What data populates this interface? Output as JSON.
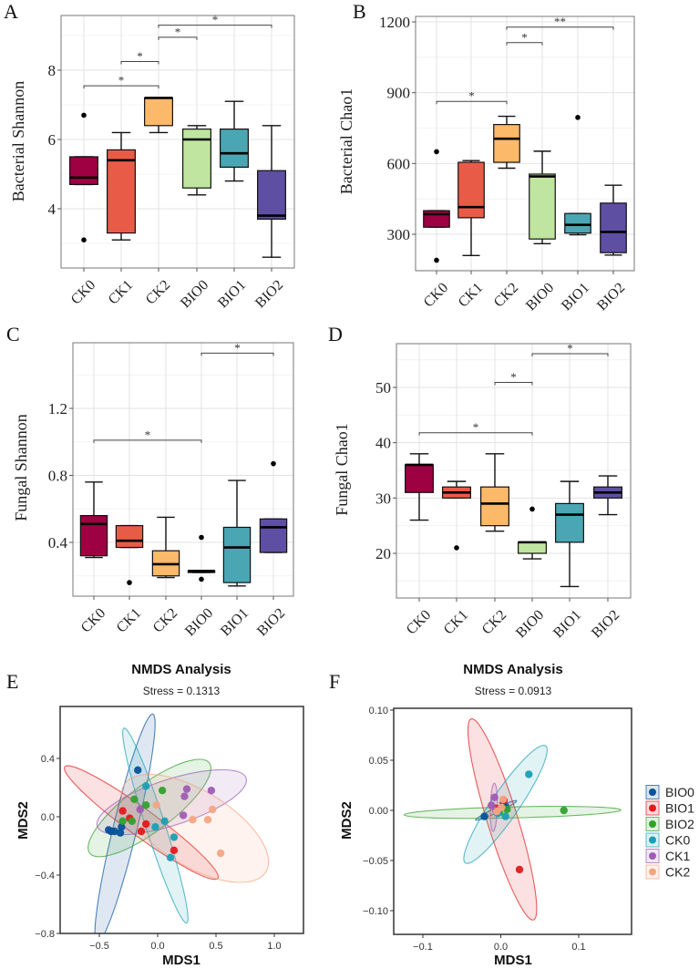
{
  "figure": {
    "panel_labels": [
      "A",
      "B",
      "C",
      "D",
      "E",
      "F"
    ]
  },
  "chart_data": [
    {
      "type": "box",
      "panel": "A",
      "title": "",
      "xlabel": "",
      "ylabel": "Bacterial Shannon",
      "categories": [
        "CK0",
        "CK1",
        "CK2",
        "BIO0",
        "BIO1",
        "BIO2"
      ],
      "colors": [
        "#9E0142",
        "#E85C47",
        "#FDB96A",
        "#BFE5A0",
        "#4AA6B3",
        "#5E4FA2"
      ],
      "yticks": [
        4,
        6,
        8
      ],
      "ylim": [
        2.3,
        9.6
      ],
      "boxes": [
        {
          "min": 4.7,
          "q1": 4.7,
          "median": 4.9,
          "q3": 5.5,
          "max": 5.5,
          "outliers": [
            6.7,
            3.1
          ]
        },
        {
          "min": 3.1,
          "q1": 3.3,
          "median": 5.4,
          "q3": 5.7,
          "max": 6.2,
          "outliers": []
        },
        {
          "min": 6.2,
          "q1": 6.4,
          "median": 7.2,
          "q3": 7.2,
          "max": 7.2,
          "outliers": []
        },
        {
          "min": 4.4,
          "q1": 4.6,
          "median": 6.0,
          "q3": 6.3,
          "max": 6.4,
          "outliers": []
        },
        {
          "min": 4.8,
          "q1": 5.2,
          "median": 5.6,
          "q3": 6.3,
          "max": 7.1,
          "outliers": []
        },
        {
          "min": 2.6,
          "q1": 3.7,
          "median": 3.8,
          "q3": 5.1,
          "max": 6.4,
          "outliers": []
        }
      ],
      "significance": [
        {
          "from": 0,
          "to": 2,
          "y": 7.55,
          "label": "*"
        },
        {
          "from": 1,
          "to": 2,
          "y": 8.25,
          "label": "*"
        },
        {
          "from": 2,
          "to": 3,
          "y": 8.95,
          "label": "*"
        },
        {
          "from": 2,
          "to": 5,
          "y": 9.3,
          "label": "*"
        }
      ]
    },
    {
      "type": "box",
      "panel": "B",
      "title": "",
      "xlabel": "",
      "ylabel": "Bacterial Chao1",
      "categories": [
        "CK0",
        "CK1",
        "CK2",
        "BIO0",
        "BIO1",
        "BIO2"
      ],
      "colors": [
        "#9E0142",
        "#E85C47",
        "#FDB96A",
        "#BFE5A0",
        "#4AA6B3",
        "#5E4FA2"
      ],
      "yticks": [
        300,
        600,
        900,
        1200
      ],
      "ylim": [
        140,
        1220
      ],
      "boxes": [
        {
          "min": 330,
          "q1": 330,
          "median": 385,
          "q3": 400,
          "max": 400,
          "outliers": [
            650,
            190
          ]
        },
        {
          "min": 210,
          "q1": 370,
          "median": 415,
          "q3": 605,
          "max": 612,
          "outliers": []
        },
        {
          "min": 580,
          "q1": 605,
          "median": 705,
          "q3": 765,
          "max": 800,
          "outliers": []
        },
        {
          "min": 260,
          "q1": 280,
          "median": 545,
          "q3": 555,
          "max": 652,
          "outliers": []
        },
        {
          "min": 298,
          "q1": 305,
          "median": 340,
          "q3": 388,
          "max": 388,
          "outliers": [
            795
          ]
        },
        {
          "min": 212,
          "q1": 222,
          "median": 310,
          "q3": 432,
          "max": 508,
          "outliers": []
        }
      ],
      "significance": [
        {
          "from": 0,
          "to": 2,
          "y": 863,
          "label": "*"
        },
        {
          "from": 2,
          "to": 3,
          "y": 1112,
          "label": "*"
        },
        {
          "from": 2,
          "to": 5,
          "y": 1178,
          "label": "**"
        }
      ]
    },
    {
      "type": "box",
      "panel": "C",
      "title": "",
      "xlabel": "",
      "ylabel": "Fungal Shannon",
      "categories": [
        "CK0",
        "CK1",
        "CK2",
        "BIO0",
        "BIO1",
        "BIO2"
      ],
      "colors": [
        "#9E0142",
        "#E85C47",
        "#FDB96A",
        "#BFE5A0",
        "#4AA6B3",
        "#5E4FA2"
      ],
      "yticks": [
        0.4,
        0.8,
        1.2
      ],
      "ylim": [
        0.07,
        1.58
      ],
      "boxes": [
        {
          "min": 0.31,
          "q1": 0.32,
          "median": 0.51,
          "q3": 0.56,
          "max": 0.76,
          "outliers": []
        },
        {
          "min": 0.37,
          "q1": 0.37,
          "median": 0.41,
          "q3": 0.5,
          "max": 0.5,
          "outliers": [
            0.16
          ]
        },
        {
          "min": 0.19,
          "q1": 0.2,
          "median": 0.27,
          "q3": 0.35,
          "max": 0.55,
          "outliers": []
        },
        {
          "min": 0.22,
          "q1": 0.22,
          "median": 0.23,
          "q3": 0.23,
          "max": 0.23,
          "outliers": [
            0.43,
            0.18
          ]
        },
        {
          "min": 0.14,
          "q1": 0.16,
          "median": 0.37,
          "q3": 0.49,
          "max": 0.77,
          "outliers": []
        },
        {
          "min": 0.34,
          "q1": 0.34,
          "median": 0.49,
          "q3": 0.54,
          "max": 0.54,
          "outliers": [
            0.87
          ]
        }
      ],
      "significance": [
        {
          "from": 0,
          "to": 3,
          "y": 1.01,
          "label": "*"
        },
        {
          "from": 3,
          "to": 5,
          "y": 1.53,
          "label": "*"
        }
      ]
    },
    {
      "type": "box",
      "panel": "D",
      "title": "",
      "xlabel": "",
      "ylabel": "Fungal Chao1",
      "categories": [
        "CK0",
        "CK1",
        "CK2",
        "BIO0",
        "BIO1",
        "BIO2"
      ],
      "colors": [
        "#9E0142",
        "#E85C47",
        "#FDB96A",
        "#BFE5A0",
        "#4AA6B3",
        "#5E4FA2"
      ],
      "yticks": [
        20,
        30,
        40,
        50
      ],
      "ylim": [
        12,
        58
      ],
      "boxes": [
        {
          "min": 26,
          "q1": 31,
          "median": 36,
          "q3": 36,
          "max": 38,
          "outliers": []
        },
        {
          "min": 30,
          "q1": 30,
          "median": 31,
          "q3": 32,
          "max": 33,
          "outliers": [
            21
          ]
        },
        {
          "min": 24,
          "q1": 25,
          "median": 29,
          "q3": 32,
          "max": 38,
          "outliers": []
        },
        {
          "min": 19,
          "q1": 20,
          "median": 22,
          "q3": 22,
          "max": 22,
          "outliers": [
            28
          ]
        },
        {
          "min": 14,
          "q1": 22,
          "median": 27,
          "q3": 29,
          "max": 33,
          "outliers": []
        },
        {
          "min": 27,
          "q1": 30,
          "median": 31,
          "q3": 32,
          "max": 34,
          "outliers": []
        }
      ],
      "significance": [
        {
          "from": 0,
          "to": 3,
          "y": 41.8,
          "label": "*"
        },
        {
          "from": 2,
          "to": 3,
          "y": 50.9,
          "label": "*"
        },
        {
          "from": 3,
          "to": 5,
          "y": 56.1,
          "label": "*"
        }
      ]
    },
    {
      "type": "scatter",
      "panel": "E",
      "title": "NMDS Analysis",
      "subtitle": "Stress = 0.1313",
      "xlabel": "MDS1",
      "ylabel": "MDS2",
      "xticks": [
        -0.5,
        0.0,
        0.5,
        1.0
      ],
      "xtick_labels": [
        "−0.5",
        "0.0",
        "0.5",
        "1.0"
      ],
      "yticks": [
        -0.8,
        -0.4,
        0.0,
        0.4
      ],
      "ytick_labels": [
        "−0.8",
        "−0.4",
        "0.0",
        "0.4"
      ],
      "xlim": [
        -0.84,
        1.24
      ],
      "ylim": [
        -0.8,
        0.76
      ],
      "series": [
        {
          "name": "BIO0",
          "color": "#08519C",
          "points": [
            [
              -0.17,
              0.32
            ],
            [
              -0.42,
              -0.09
            ],
            [
              -0.4,
              -0.1
            ],
            [
              -0.37,
              -0.1
            ],
            [
              -0.32,
              -0.11
            ],
            [
              -0.31,
              -0.07
            ]
          ],
          "ellipse": {
            "cx": -0.28,
            "cy": -0.08,
            "rx": 0.82,
            "ry": 0.1,
            "angle_deg": 73
          }
        },
        {
          "name": "BIO1",
          "color": "#E31A1C",
          "points": [
            [
              -0.3,
              0.04
            ],
            [
              -0.24,
              -0.01
            ],
            [
              -0.1,
              -0.05
            ],
            [
              -0.14,
              -0.1
            ],
            [
              0.14,
              -0.23
            ]
          ],
          "ellipse": {
            "cx": -0.14,
            "cy": -0.04,
            "rx": 0.76,
            "ry": 0.1,
            "angle_deg": -30
          }
        },
        {
          "name": "BIO2",
          "color": "#33A02C",
          "points": [
            [
              -0.2,
              0.12
            ],
            [
              -0.1,
              0.08
            ],
            [
              0.04,
              0.18
            ],
            [
              -0.3,
              -0.03
            ],
            [
              -0.22,
              -0.03
            ]
          ],
          "ellipse": {
            "cx": -0.07,
            "cy": 0.06,
            "rx": 0.6,
            "ry": 0.17,
            "angle_deg": 30
          }
        },
        {
          "name": "CK0",
          "color": "#1A9FB5",
          "points": [
            [
              -0.1,
              0.21
            ],
            [
              0.06,
              -0.03
            ],
            [
              -0.02,
              -0.07
            ],
            [
              0.14,
              -0.14
            ],
            [
              0.11,
              -0.28
            ]
          ],
          "ellipse": {
            "cx": -0.02,
            "cy": -0.06,
            "rx": 0.72,
            "ry": 0.08,
            "angle_deg": -68
          }
        },
        {
          "name": "CK1",
          "color": "#9E5DB5",
          "points": [
            [
              0.25,
              0.19
            ],
            [
              0.46,
              0.18
            ],
            [
              0.23,
              0.14
            ],
            [
              -0.15,
              0.05
            ],
            [
              0.22,
              0.01
            ]
          ],
          "ellipse": {
            "cx": 0.12,
            "cy": 0.1,
            "rx": 0.66,
            "ry": 0.16,
            "angle_deg": 14
          }
        },
        {
          "name": "CK2",
          "color": "#F4A582",
          "points": [
            [
              -0.01,
              0.08
            ],
            [
              0.47,
              0.05
            ],
            [
              0.3,
              -0.02
            ],
            [
              0.43,
              -0.02
            ],
            [
              0.54,
              -0.25
            ]
          ],
          "ellipse": {
            "cx": 0.32,
            "cy": -0.08,
            "rx": 0.68,
            "ry": 0.27,
            "angle_deg": -24
          }
        }
      ]
    },
    {
      "type": "scatter",
      "panel": "F",
      "title": "NMDS Analysis",
      "subtitle": "Stress = 0.0913",
      "xlabel": "MDS1",
      "ylabel": "MDS2",
      "xticks": [
        -0.1,
        0.0,
        0.1
      ],
      "xtick_labels": [
        "−0.1",
        "0.0",
        "0.1"
      ],
      "yticks": [
        -0.1,
        -0.05,
        0.0,
        0.05,
        0.1
      ],
      "ytick_labels": [
        "−0.10",
        "−0.05",
        "0.00",
        "0.05",
        "0.10"
      ],
      "xlim": [
        -0.137,
        0.168
      ],
      "ylim": [
        -0.123,
        0.102
      ],
      "legend": {
        "position": "right",
        "entries": [
          "BIO0",
          "BIO1",
          "BIO2",
          "CK0",
          "CK1",
          "CK2"
        ]
      },
      "series": [
        {
          "name": "BIO0",
          "color": "#08519C",
          "points": [
            [
              -0.021,
              -0.006
            ],
            [
              0.003,
              0.006
            ],
            [
              0.006,
              0.004
            ]
          ],
          "ellipse": {
            "cx": -0.006,
            "cy": 0.0,
            "rx": 0.028,
            "ry": 0.0025,
            "angle_deg": 20
          }
        },
        {
          "name": "BIO1",
          "color": "#E31A1C",
          "points": [
            [
              0.024,
              -0.059
            ],
            [
              0.004,
              0.01
            ],
            [
              -0.006,
              0.002
            ]
          ],
          "ellipse": {
            "cx": 0.002,
            "cy": -0.009,
            "rx": 0.108,
            "ry": 0.019,
            "angle_deg": -68
          }
        },
        {
          "name": "BIO2",
          "color": "#33A02C",
          "points": [
            [
              0.081,
              0.0
            ],
            [
              0.008,
              0.001
            ],
            [
              -0.002,
              -0.002
            ]
          ],
          "ellipse": {
            "cx": 0.015,
            "cy": -0.002,
            "rx": 0.139,
            "ry": 0.0055,
            "angle_deg": 1
          }
        },
        {
          "name": "CK0",
          "color": "#1A9FB5",
          "points": [
            [
              0.036,
              0.036
            ],
            [
              0.006,
              -0.006
            ],
            [
              -0.004,
              -0.003
            ]
          ],
          "ellipse": {
            "cx": 0.006,
            "cy": 0.006,
            "rx": 0.078,
            "ry": 0.016,
            "angle_deg": 48
          }
        },
        {
          "name": "CK1",
          "color": "#9E5DB5",
          "points": [
            [
              -0.008,
              0.013
            ],
            [
              -0.012,
              0.005
            ],
            [
              -0.006,
              0.0
            ]
          ],
          "ellipse": {
            "cx": -0.009,
            "cy": 0.003,
            "rx": 0.024,
            "ry": 0.0045,
            "angle_deg": 88
          }
        },
        {
          "name": "CK2",
          "color": "#F4A582",
          "points": [
            [
              0.003,
              0.011
            ],
            [
              -0.005,
              -0.001
            ],
            [
              0.001,
              0.003
            ]
          ],
          "ellipse": {
            "cx": -0.004,
            "cy": 0.002,
            "rx": 0.014,
            "ry": 0.004,
            "angle_deg": 40
          }
        }
      ]
    }
  ]
}
